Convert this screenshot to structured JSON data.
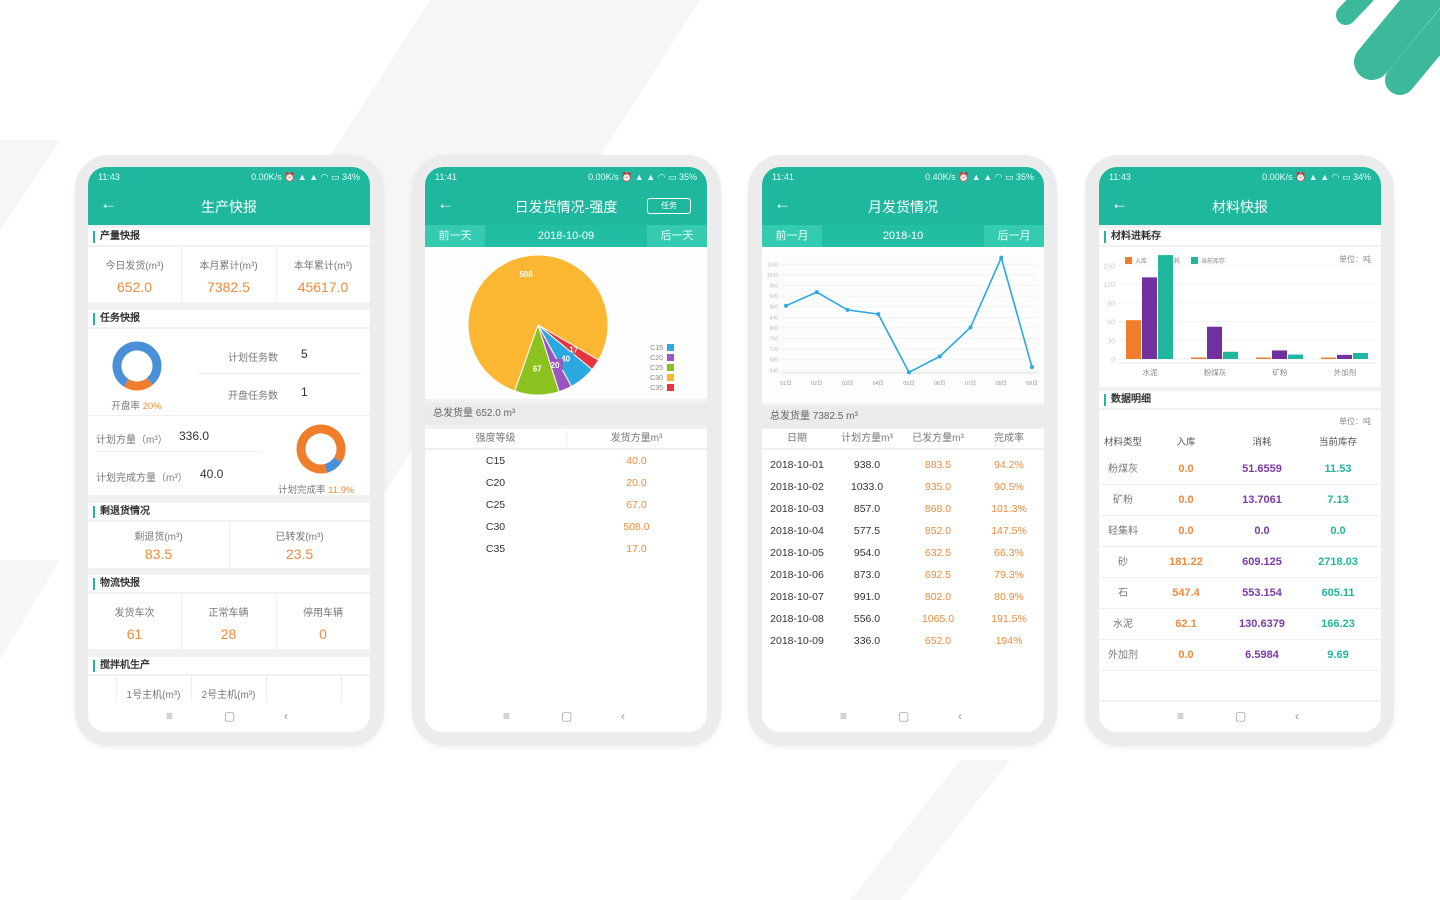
{
  "theme": {
    "teal": "#1fb79d",
    "orange": "#f08a3c",
    "purple": "#7b3aa8",
    "green": "#22b79b",
    "blue": "#4a90d9"
  },
  "phones": [
    {
      "status": {
        "time": "11:43",
        "speed": "0.00K/s",
        "battery": "34%"
      },
      "title": "生产快报",
      "back_icon": "arrow-left-icon"
    },
    {
      "status": {
        "time": "11:41",
        "speed": "0.00K/s",
        "battery": "35%"
      },
      "title": "日发货情况-强度",
      "action_button": "任务",
      "prev": "前一天",
      "date": "2018-10-09",
      "next": "后一天"
    },
    {
      "status": {
        "time": "11:41",
        "speed": "0.40K/s",
        "battery": "35%"
      },
      "title": "月发货情况",
      "prev": "前一月",
      "date": "2018-10",
      "next": "后一月"
    },
    {
      "status": {
        "time": "11:43",
        "speed": "0.00K/s",
        "battery": "34%"
      },
      "title": "材料快报"
    }
  ],
  "production": {
    "output_section": "产量快报",
    "output_stats": [
      {
        "label": "今日发货(m³)",
        "value": "652.0"
      },
      {
        "label": "本月累计(m³)",
        "value": "7382.5"
      },
      {
        "label": "本年累计(m³)",
        "value": "45617.0"
      }
    ],
    "task_section": "任务快报",
    "open_rate": {
      "label": "开盘率",
      "value": "20%",
      "fraction": 0.2
    },
    "planned_tasks": {
      "label": "计划任务数",
      "value": "5"
    },
    "open_tasks": {
      "label": "开盘任务数",
      "value": "1"
    },
    "planned_volume": {
      "label": "计划方量（m³）",
      "value": "336.0"
    },
    "completed_volume": {
      "label": "计划完成方量（m³）",
      "value": "40.0"
    },
    "completion_rate": {
      "label": "计划完成率",
      "value": "11.9%",
      "fraction": 0.119
    },
    "return_section": "剩退货情况",
    "return_stats": [
      {
        "label": "剩退货(m³)",
        "value": "83.5"
      },
      {
        "label": "已转发(m³)",
        "value": "23.5"
      }
    ],
    "logistics_section": "物流快报",
    "logistics_stats": [
      {
        "label": "发货车次",
        "value": "61"
      },
      {
        "label": "正常车辆",
        "value": "28"
      },
      {
        "label": "停用车辆",
        "value": "0"
      }
    ],
    "mixer_section": "搅拌机生产",
    "mixer_columns": [
      "1号主机(m³)",
      "2号主机(m³)"
    ]
  },
  "daily": {
    "total": "总发货量 652.0 m³",
    "columns": [
      "强度等级",
      "发货方量m³"
    ],
    "rows": [
      [
        "C15",
        "40.0"
      ],
      [
        "C20",
        "20.0"
      ],
      [
        "C25",
        "67.0"
      ],
      [
        "C30",
        "508.0"
      ],
      [
        "C35",
        "17.0"
      ]
    ]
  },
  "monthly": {
    "total": "总发货量 7382.5 m³",
    "columns": [
      "日期",
      "计划方量m³",
      "已发方量m³",
      "完成率"
    ],
    "rows": [
      [
        "2018-10-01",
        "938.0",
        "883.5",
        "94.2%"
      ],
      [
        "2018-10-02",
        "1033.0",
        "935.0",
        "90.5%"
      ],
      [
        "2018-10-03",
        "857.0",
        "868.0",
        "101.3%"
      ],
      [
        "2018-10-04",
        "577.5",
        "852.0",
        "147.5%"
      ],
      [
        "2018-10-05",
        "954.0",
        "632.5",
        "66.3%"
      ],
      [
        "2018-10-06",
        "873.0",
        "692.5",
        "79.3%"
      ],
      [
        "2018-10-07",
        "991.0",
        "802.0",
        "80.9%"
      ],
      [
        "2018-10-08",
        "556.0",
        "1065.0",
        "191.5%"
      ],
      [
        "2018-10-09",
        "336.0",
        "652.0",
        "194%"
      ]
    ]
  },
  "materials": {
    "chart_section": "材料进耗存",
    "unit": "单位：吨",
    "detail_section": "数据明细",
    "columns": [
      "材料类型",
      "入库",
      "消耗",
      "当前库存"
    ],
    "rows": [
      [
        "粉煤灰",
        "0.0",
        "51.6559",
        "11.53"
      ],
      [
        "矿粉",
        "0.0",
        "13.7061",
        "7.13"
      ],
      [
        "轻集料",
        "0.0",
        "0.0",
        "0.0"
      ],
      [
        "砂",
        "181.22",
        "609.125",
        "2718.03"
      ],
      [
        "石",
        "547.4",
        "553.154",
        "605.11"
      ],
      [
        "水泥",
        "62.1",
        "130.6379",
        "166.23"
      ],
      [
        "外加剂",
        "0.0",
        "6.5984",
        "9.69"
      ]
    ]
  },
  "chart_data": [
    {
      "type": "pie",
      "categories": [
        "C15",
        "C20",
        "C25",
        "C30",
        "C35"
      ],
      "values": [
        40,
        20,
        67,
        508,
        17
      ],
      "colors": [
        "#2aa8e0",
        "#9b55c0",
        "#8cc21f",
        "#fbb731",
        "#e8343c"
      ],
      "legend": "right"
    },
    {
      "type": "line",
      "x": [
        "01日",
        "02日",
        "03日",
        "04日",
        "05日",
        "06日",
        "07日",
        "08日",
        "09日"
      ],
      "values": [
        883.5,
        935,
        868,
        852,
        632.5,
        692.5,
        802,
        1065,
        652
      ],
      "ylim": [
        630,
        1075
      ],
      "yticks": [
        640,
        680,
        720,
        760,
        800,
        840,
        880,
        920,
        960,
        1000,
        1040
      ],
      "color": "#2aa8e0",
      "grid": true
    },
    {
      "type": "bar",
      "categories": [
        "水泥",
        "粉煤灰",
        "矿粉",
        "外加剂"
      ],
      "series": [
        {
          "name": "入库",
          "values": [
            62.1,
            0,
            0,
            0
          ],
          "color": "#f07d2b"
        },
        {
          "name": "消耗",
          "values": [
            130.6379,
            51.6559,
            13.7061,
            6.5984
          ],
          "color": "#7030a0"
        },
        {
          "name": "当前库存",
          "values": [
            166.23,
            11.53,
            7.13,
            9.69
          ],
          "color": "#1fb79d"
        }
      ],
      "ylim": [
        0,
        160
      ],
      "yticks": [
        0,
        30,
        60,
        90,
        120,
        150
      ],
      "legend": "top-left",
      "grid": true
    }
  ]
}
